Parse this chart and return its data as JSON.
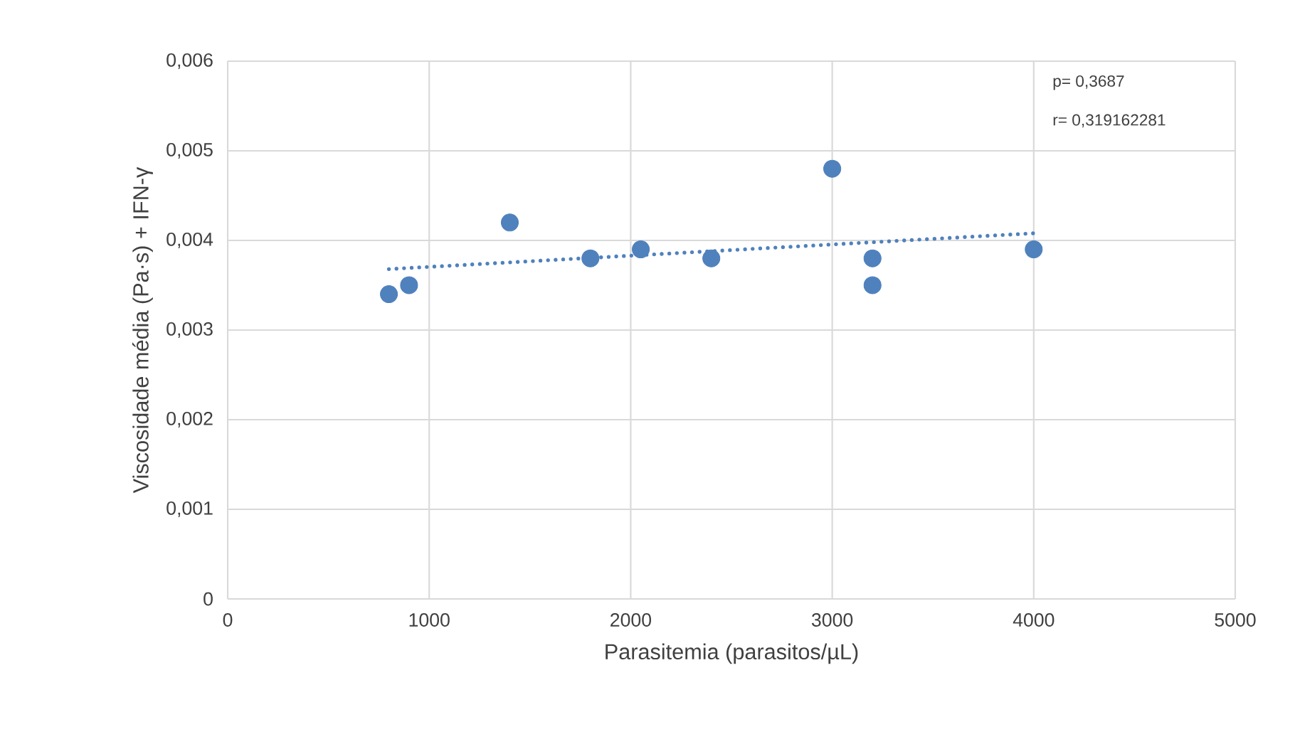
{
  "chart_data": {
    "type": "scatter",
    "xlabel": "Parasitemia (parasitos/µL)",
    "ylabel": "Viscosidade média (Pa·s) + IFN-γ",
    "xlim": [
      0,
      5000
    ],
    "xticks": [
      0,
      1000,
      2000,
      3000,
      4000,
      5000
    ],
    "ylim": [
      0,
      0.006
    ],
    "yticks": [
      {
        "value": 0,
        "label": "0"
      },
      {
        "value": 0.001,
        "label": "0,001"
      },
      {
        "value": 0.002,
        "label": "0,002"
      },
      {
        "value": 0.003,
        "label": "0,003"
      },
      {
        "value": 0.004,
        "label": "0,004"
      },
      {
        "value": 0.005,
        "label": "0,005"
      },
      {
        "value": 0.006,
        "label": "0,006"
      }
    ],
    "grid": true,
    "annotations": [
      "p= 0,3687",
      "r= 0,319162281"
    ],
    "series": [
      {
        "color": "#4f81bd",
        "marker": "circle",
        "x": [
          800,
          900,
          1400,
          1800,
          2050,
          2400,
          3000,
          3200,
          3200,
          4000
        ],
        "values": [
          0.0034,
          0.0035,
          0.0042,
          0.0038,
          0.0039,
          0.0038,
          0.0048,
          0.0038,
          0.0035,
          0.0039
        ]
      },
      {
        "type": "line",
        "color": "#4f81bd",
        "marker": "none",
        "line_style": "dotted",
        "x": [
          800,
          4000
        ],
        "values": [
          0.00368,
          0.00408
        ]
      }
    ]
  }
}
